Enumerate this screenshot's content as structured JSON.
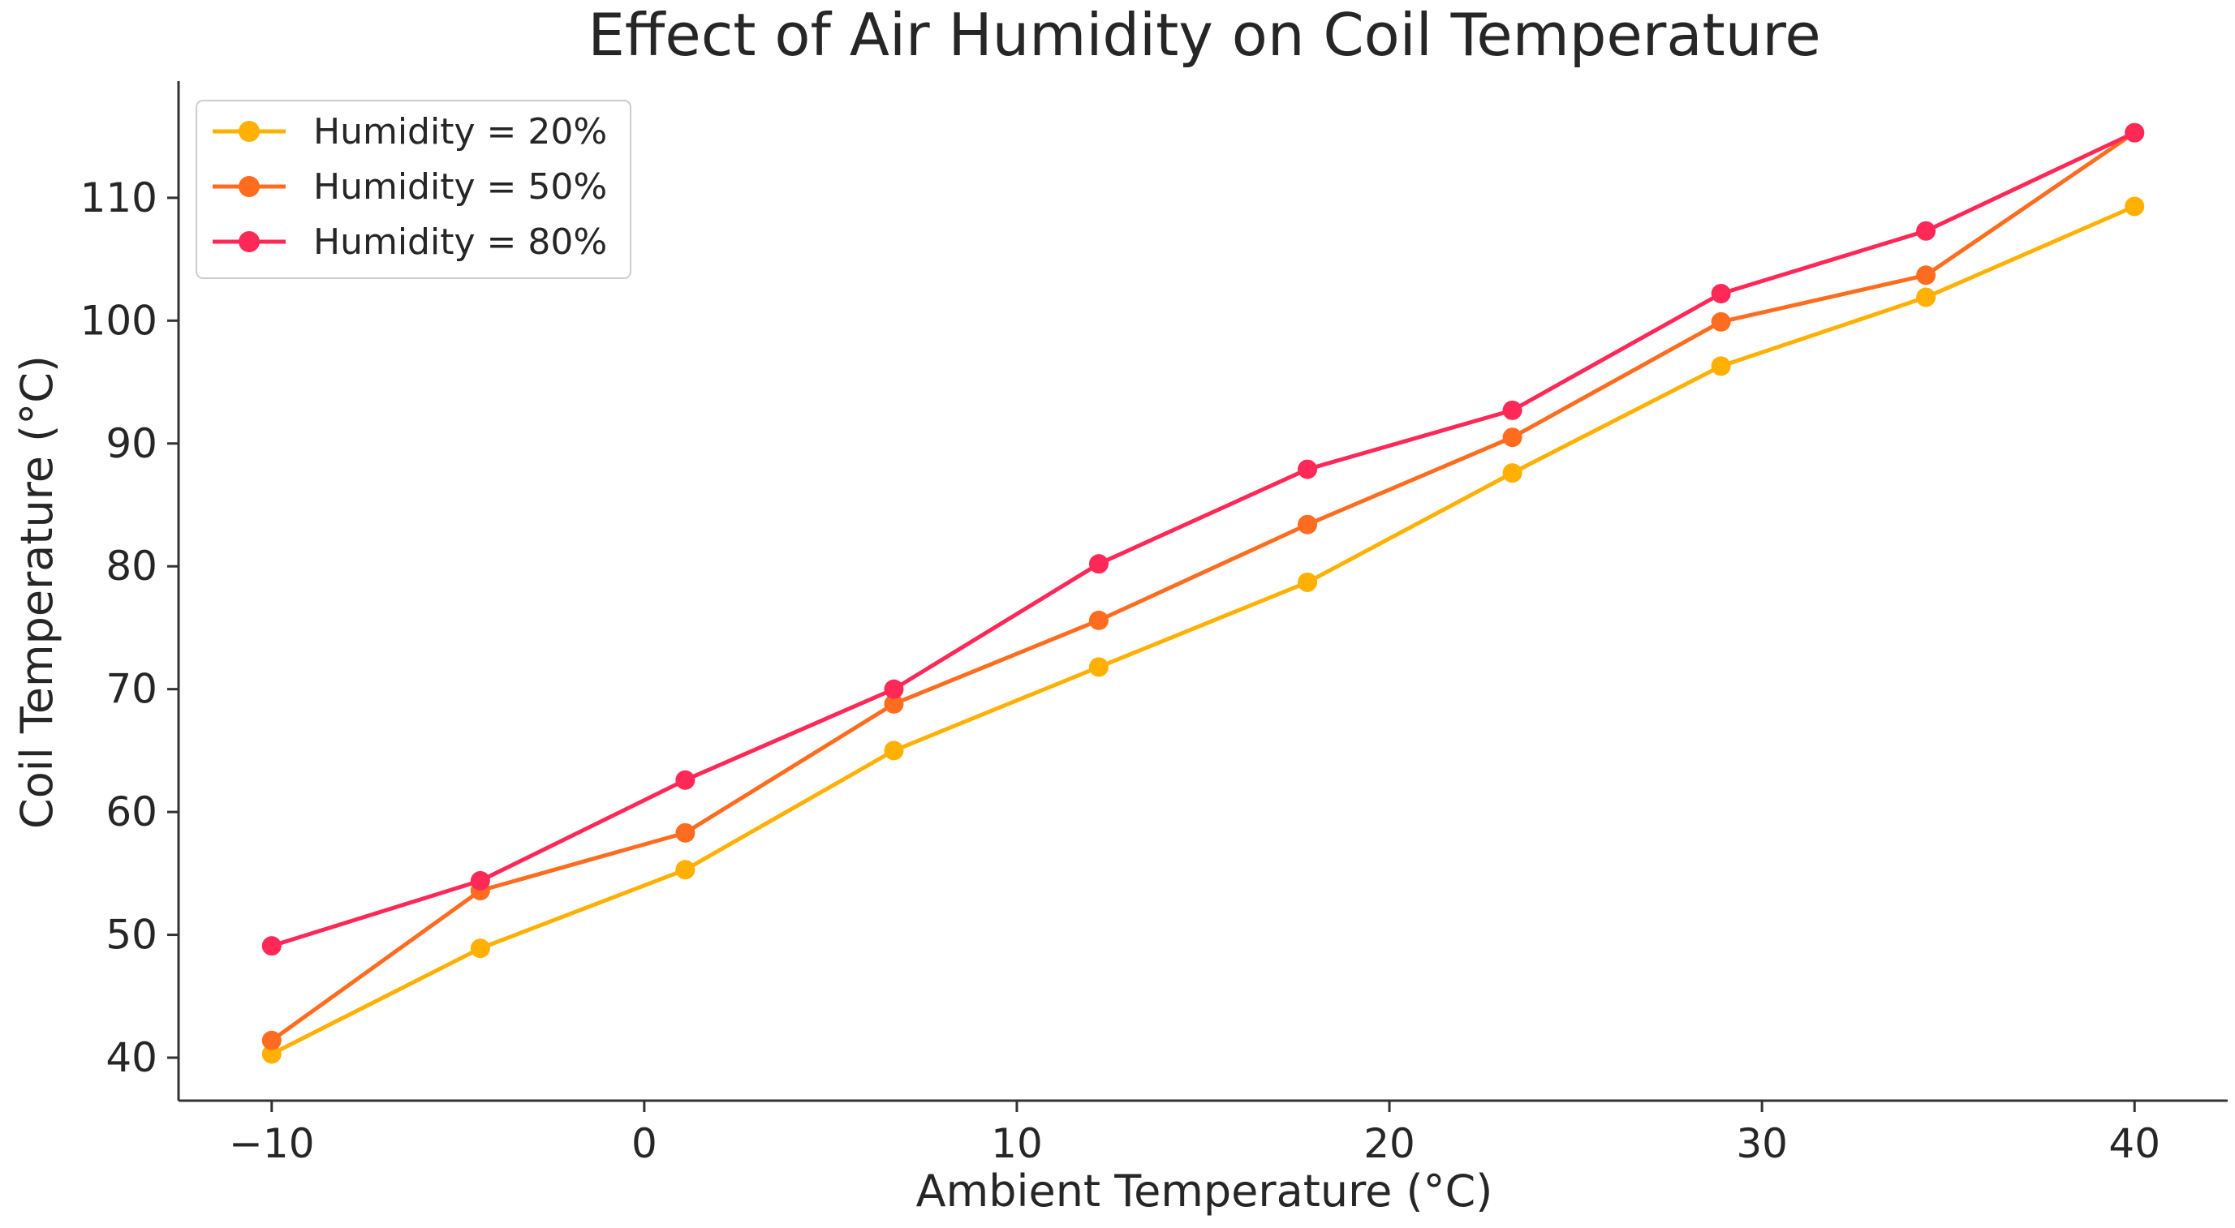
{
  "chart_data": {
    "type": "line",
    "title": "Effect of Air Humidity on Coil Temperature",
    "xlabel": "Ambient Temperature (°C)",
    "ylabel": "Coil Temperature (°C)",
    "xlim": [
      -12.5,
      42.5
    ],
    "ylim": [
      36.5,
      119.5
    ],
    "xticks": [
      -10,
      0,
      10,
      20,
      30,
      40
    ],
    "xtick_labels": [
      "−10",
      "0",
      "10",
      "20",
      "30",
      "40"
    ],
    "yticks": [
      40,
      50,
      60,
      70,
      80,
      90,
      100,
      110
    ],
    "ytick_labels": [
      "40",
      "50",
      "60",
      "70",
      "80",
      "90",
      "100",
      "110"
    ],
    "grid": false,
    "legend_position": "top-left",
    "x": [
      -10,
      -4.4,
      1.1,
      6.7,
      12.2,
      17.8,
      23.3,
      28.9,
      34.4,
      40
    ],
    "series": [
      {
        "name": "Humidity = 20%",
        "color": "#FFB000",
        "values": [
          40.3,
          48.9,
          55.3,
          65.0,
          71.8,
          78.7,
          87.6,
          96.3,
          101.9,
          109.3
        ]
      },
      {
        "name": "Humidity = 50%",
        "color": "#FE6D1F",
        "values": [
          41.4,
          53.6,
          58.3,
          68.8,
          75.6,
          83.4,
          90.5,
          99.9,
          103.7,
          115.3
        ]
      },
      {
        "name": "Humidity = 80%",
        "color": "#FF2857",
        "values": [
          49.1,
          54.4,
          62.6,
          70.0,
          80.2,
          87.9,
          92.7,
          102.2,
          107.3,
          115.3
        ]
      }
    ]
  }
}
